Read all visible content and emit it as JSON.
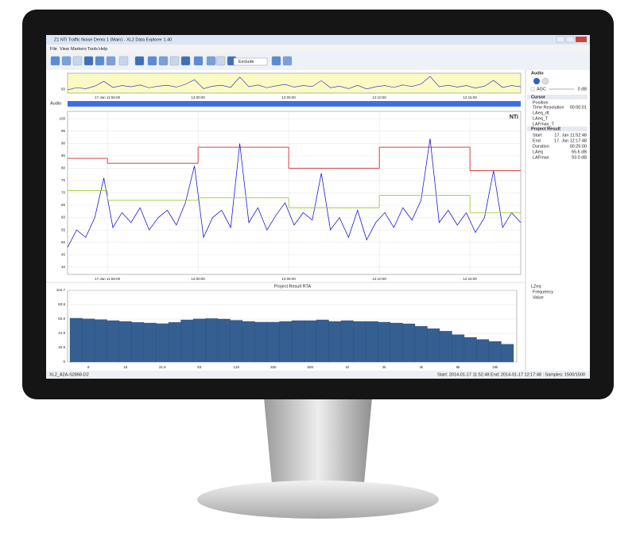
{
  "window": {
    "title": "Z1 NTi Traffic Noise Demo 1 (Main) - XL2 Data Explorer 1.40",
    "menu": [
      "File",
      "View",
      "Markers",
      "Tools",
      "Help"
    ],
    "dropdown": "Exclude",
    "audio_label": "Audio",
    "logo": "NTi"
  },
  "side_panel": {
    "audio": "Audio",
    "agc": "AGC",
    "gain": "0 dB",
    "cursor": "Cursor",
    "position": "Position",
    "time_resolution": "Time Resolution",
    "time_resolution_value": "00:00:01",
    "project_result": "Project Result",
    "rows": [
      [
        "Start",
        "17. Jan 11:52:48"
      ],
      [
        "End",
        "17. Jan 12:17:48"
      ],
      [
        "Duration",
        "00:25:00"
      ],
      [
        "LAeq",
        "65.6 dB"
      ],
      [
        "LAFmax",
        "93.0 dB"
      ]
    ],
    "spectrum": "LZeq",
    "frequency": "Frequency",
    "value": "Value"
  },
  "status": {
    "device": "XL2_A2A-S2868-D2",
    "info": "Start: 2014-01-17 11:52:48  End: 2014-01-17 12:17:48 : Samples: 1500/1500"
  },
  "chart_data": [
    {
      "type": "line",
      "xlim": [
        712.8,
        737.8
      ],
      "xticks": [
        {
          "value": 715,
          "label": "17.Jan 11:55:00"
        },
        {
          "value": 720,
          "label": "12:00:00"
        },
        {
          "value": 725,
          "label": "12:05:00"
        },
        {
          "value": 730,
          "label": "12:10:00"
        },
        {
          "value": 735,
          "label": "12:15:00"
        }
      ],
      "ylim": [
        37,
        103
      ],
      "yticks": [
        40,
        45,
        50,
        55,
        60,
        65,
        70,
        75,
        80,
        85,
        90,
        95,
        100
      ],
      "grid": true,
      "overview": {
        "ylim": [
          40,
          100
        ],
        "yticks": [
          50
        ]
      },
      "series": [
        {
          "name": "LAeq_dt",
          "color": "#1c1cd6",
          "x": [
            712.8,
            713.3,
            713.8,
            714.3,
            714.8,
            715.3,
            715.8,
            716.3,
            716.8,
            717.3,
            717.8,
            718.3,
            718.8,
            719.3,
            719.8,
            720.3,
            720.8,
            721.3,
            721.8,
            722.3,
            722.8,
            723.3,
            723.8,
            724.3,
            724.8,
            725.3,
            725.8,
            726.3,
            726.8,
            727.3,
            727.8,
            728.3,
            728.8,
            729.3,
            729.8,
            730.3,
            730.8,
            731.3,
            731.8,
            732.3,
            732.8,
            733.3,
            733.8,
            734.3,
            734.8,
            735.3,
            735.8,
            736.3,
            736.8,
            737.3,
            737.8
          ],
          "values": [
            48,
            55,
            52,
            60,
            76,
            56,
            62,
            58,
            64,
            55,
            60,
            63,
            57,
            66,
            81,
            52,
            60,
            63,
            56,
            90,
            58,
            64,
            55,
            61,
            66,
            57,
            62,
            59,
            78,
            55,
            60,
            52,
            63,
            51,
            58,
            62,
            56,
            64,
            59,
            67,
            92,
            58,
            63,
            57,
            62,
            54,
            60,
            79,
            56,
            62,
            58
          ]
        },
        {
          "name": "LAeq_T",
          "color": "#9acd32",
          "step": true,
          "x": [
            712.8,
            715,
            720,
            725,
            730,
            735
          ],
          "values": [
            71,
            67,
            68,
            64,
            69,
            62
          ]
        },
        {
          "name": "LAFmax_T",
          "color": "#cc2a2a",
          "step": true,
          "x": [
            712.8,
            715,
            720,
            725,
            730,
            735
          ],
          "values": [
            84,
            82,
            88.5,
            80,
            88.5,
            79
          ]
        }
      ]
    },
    {
      "type": "bar",
      "title": "Project Result RTA",
      "color": "#365f91",
      "categories": [
        null,
        "8",
        null,
        null,
        "16",
        null,
        null,
        "31.5",
        null,
        null,
        "63",
        null,
        null,
        "125",
        null,
        null,
        "250",
        null,
        null,
        "500",
        null,
        null,
        "1k",
        null,
        null,
        "2k",
        null,
        null,
        "4k",
        null,
        null,
        "8k",
        null,
        null,
        "16k",
        null
      ],
      "values": [
        64,
        63,
        62,
        60.5,
        59.3,
        58,
        57,
        56,
        58,
        61.6,
        63,
        63.5,
        62.8,
        61,
        59.3,
        58.2,
        58.2,
        59.3,
        60.5,
        60.5,
        61.6,
        59.3,
        60.5,
        59.3,
        59.3,
        58.2,
        57,
        55.8,
        52.3,
        48.8,
        45,
        40,
        36,
        33,
        30,
        26
      ],
      "ylim": [
        0,
        104.7
      ],
      "yticks": [
        0,
        20.9,
        41.9,
        62.8,
        83.8,
        104.7
      ],
      "grid": true
    }
  ]
}
